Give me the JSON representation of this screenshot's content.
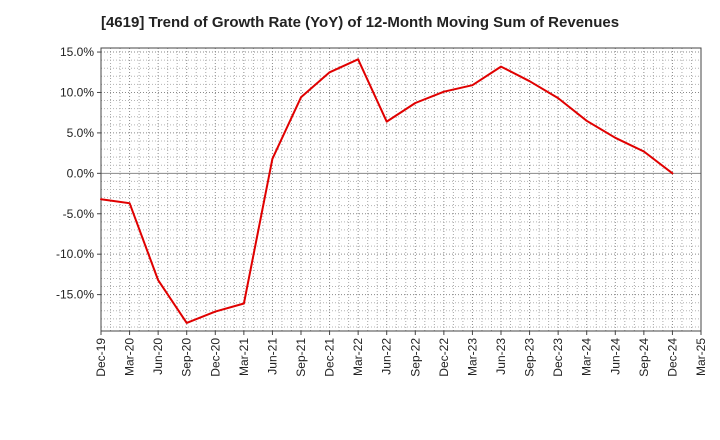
{
  "chart_data": {
    "type": "line",
    "title": "[4619]  Trend of Growth Rate (YoY) of 12-Month Moving Sum of Revenues",
    "xlabel": "",
    "ylabel": "",
    "x_tick_labels": [
      "Dec-19",
      "Mar-20",
      "Jun-20",
      "Sep-20",
      "Dec-20",
      "Mar-21",
      "Jun-21",
      "Sep-21",
      "Dec-21",
      "Mar-22",
      "Jun-22",
      "Sep-22",
      "Dec-22",
      "Mar-23",
      "Jun-23",
      "Sep-23",
      "Dec-23",
      "Mar-24",
      "Jun-24",
      "Sep-24",
      "Dec-24",
      "Mar-25"
    ],
    "y_tick_labels": [
      "15.0%",
      "10.0%",
      "5.0%",
      "0.0%",
      "-5.0%",
      "-10.0%",
      "-15.0%"
    ],
    "y_ticks": [
      15,
      10,
      5,
      0,
      -5,
      -10,
      -15
    ],
    "ylim": [
      -19.5,
      15.5
    ],
    "grid": true,
    "series": [
      {
        "color": "#e00000",
        "x": [
          "Dec-19",
          "Mar-20",
          "Jun-20",
          "Sep-20",
          "Dec-20",
          "Mar-21",
          "Jun-21",
          "Sep-21",
          "Dec-21",
          "Mar-22",
          "Jun-22",
          "Sep-22",
          "Dec-22",
          "Mar-23",
          "Jun-23",
          "Sep-23",
          "Dec-23",
          "Mar-24",
          "Jun-24",
          "Sep-24",
          "Dec-24"
        ],
        "values": [
          -3.2,
          -3.7,
          -13.2,
          -18.5,
          -17.1,
          -16.1,
          1.8,
          9.4,
          12.5,
          14.1,
          6.4,
          8.7,
          10.1,
          10.9,
          13.2,
          11.4,
          9.3,
          6.5,
          4.4,
          2.7,
          0.0
        ]
      }
    ]
  }
}
